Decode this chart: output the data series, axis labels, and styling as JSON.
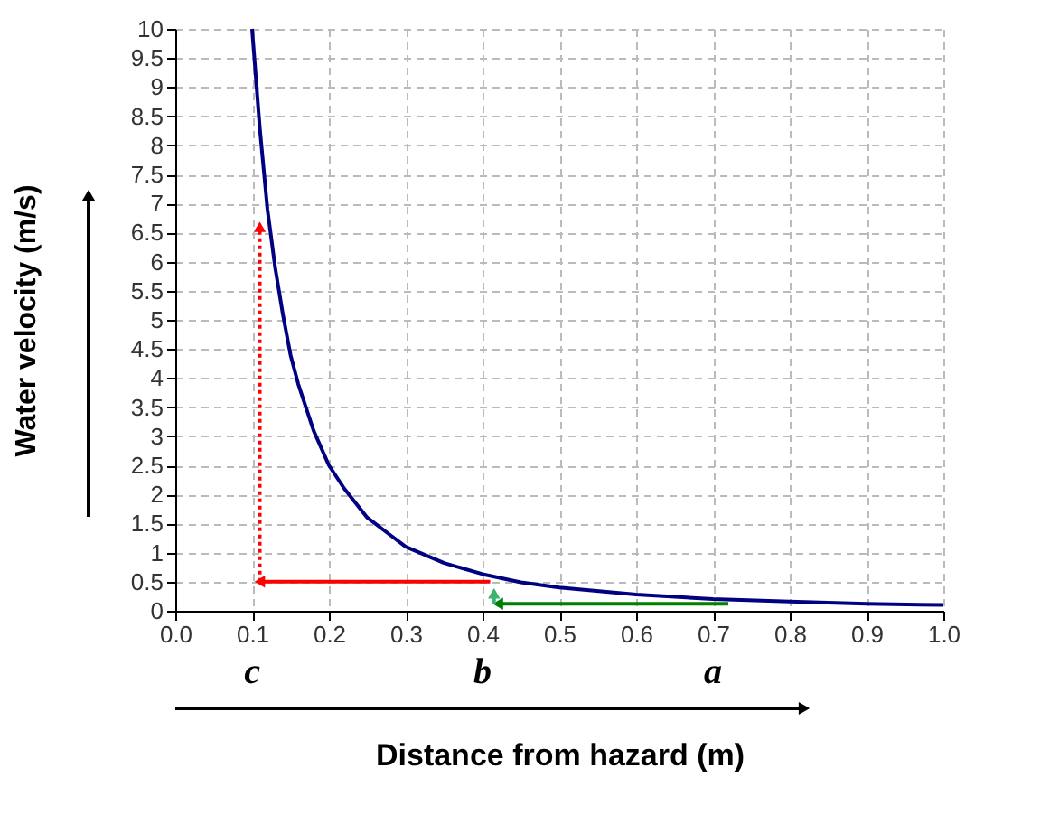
{
  "chart_data": {
    "type": "line",
    "xlabel": "Distance from hazard (m)",
    "ylabel": "Water velocity (m/s)",
    "xlim": [
      0,
      1
    ],
    "xticks": [
      {
        "value": 0,
        "label": "0.0"
      },
      {
        "value": 0.1,
        "label": "0.1"
      },
      {
        "value": 0.2,
        "label": "0.2"
      },
      {
        "value": 0.3,
        "label": "0.3"
      },
      {
        "value": 0.4,
        "label": "0.4"
      },
      {
        "value": 0.5,
        "label": "0.5"
      },
      {
        "value": 0.6,
        "label": "0.6"
      },
      {
        "value": 0.7,
        "label": "0.7"
      },
      {
        "value": 0.8,
        "label": "0.8"
      },
      {
        "value": 0.9,
        "label": "0.9"
      },
      {
        "value": 1,
        "label": "1.0"
      }
    ],
    "ylim": [
      0,
      10
    ],
    "yticks": [
      0,
      0.5,
      1,
      1.5,
      2,
      2.5,
      3,
      3.5,
      4,
      4.5,
      5,
      5.5,
      6,
      6.5,
      7,
      7.5,
      8,
      8.5,
      9,
      9.5,
      10
    ],
    "grid": true,
    "series": [
      {
        "color": "#000080",
        "line_style": "solid",
        "x": [
          0.1,
          0.11,
          0.12,
          0.13,
          0.14,
          0.15,
          0.16,
          0.18,
          0.2,
          0.22,
          0.25,
          0.28,
          0.3,
          0.35,
          0.4,
          0.45,
          0.5,
          0.6,
          0.7,
          0.8,
          0.9,
          1.0
        ],
        "values": [
          10,
          8.3,
          6.9,
          5.9,
          5.1,
          4.4,
          3.9,
          3.1,
          2.5,
          2.1,
          1.6,
          1.3,
          1.1,
          0.82,
          0.63,
          0.49,
          0.4,
          0.28,
          0.2,
          0.16,
          0.12,
          0.1
        ]
      },
      {
        "color": "#008000",
        "line_style": "solid",
        "marker": "triangle",
        "x": [
          0.72,
          0.42
        ],
        "values": [
          0.12,
          0.12
        ]
      },
      {
        "color": "#3cb371",
        "line_style": "solid",
        "marker": "triangle",
        "x": [
          0.415,
          0.415
        ],
        "values": [
          0.12,
          0.3
        ]
      },
      {
        "color": "#ff0000",
        "line_style": "solid",
        "marker": "triangle",
        "x": [
          0.41,
          0.11
        ],
        "values": [
          0.5,
          0.5
        ]
      },
      {
        "color": "#ff0000",
        "line_style": "dotted",
        "marker": "triangle",
        "x": [
          0.11,
          0.11
        ],
        "values": [
          0.5,
          6.6
        ]
      }
    ],
    "annotations": [
      "c",
      "b",
      "a"
    ]
  }
}
